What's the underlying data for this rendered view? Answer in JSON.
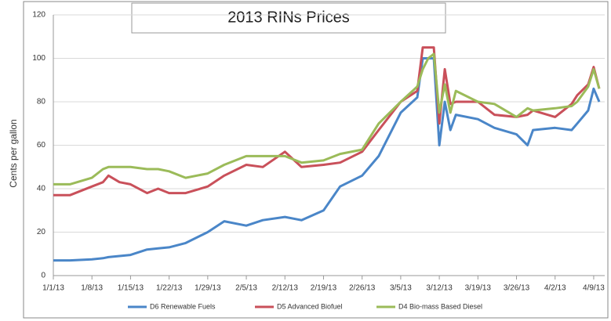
{
  "chart_data": {
    "type": "line",
    "title": "2013 RINs Prices",
    "y_label": "Cents per gallon",
    "x": [
      "1/1/13",
      "1/4/13",
      "1/8/13",
      "1/10/13",
      "1/11/13",
      "1/13/13",
      "1/15/13",
      "1/18/13",
      "1/20/13",
      "1/22/13",
      "1/25/13",
      "1/29/13",
      "2/1/13",
      "2/5/13",
      "2/8/13",
      "2/12/13",
      "2/15/13",
      "2/19/13",
      "2/22/13",
      "2/26/13",
      "3/1/13",
      "3/5/13",
      "3/8/13",
      "3/9/13",
      "3/10/13",
      "3/11/13",
      "3/12/13",
      "3/13/13",
      "3/14/13",
      "3/15/13",
      "3/19/13",
      "3/22/13",
      "3/26/13",
      "3/28/13",
      "3/29/13",
      "4/2/13",
      "4/5/13",
      "4/6/13",
      "4/8/13",
      "4/9/13",
      "4/10/13"
    ],
    "xlim": [
      "1/1/13",
      "4/11/13"
    ],
    "xticks": [
      "1/1/13",
      "1/8/13",
      "1/15/13",
      "1/22/13",
      "1/29/13",
      "2/5/13",
      "2/12/13",
      "2/19/13",
      "2/26/13",
      "3/5/13",
      "3/12/13",
      "3/19/13",
      "3/26/13",
      "4/2/13",
      "4/9/13"
    ],
    "ylim": [
      0,
      120
    ],
    "yticks": [
      0,
      20,
      40,
      60,
      80,
      100,
      120
    ],
    "grid": true,
    "series": [
      {
        "name": "D6 Renewable Fuels",
        "color": "#4a86c8",
        "values": [
          7,
          7,
          7.5,
          8,
          8.5,
          9,
          9.5,
          12,
          12.5,
          13,
          15,
          20,
          25,
          23,
          25.5,
          27,
          25.5,
          30,
          41,
          46,
          55,
          75,
          82,
          100,
          100,
          100,
          60,
          80,
          67,
          74,
          72,
          68,
          65,
          60,
          67,
          68,
          67,
          70,
          76,
          86,
          80
        ]
      },
      {
        "name": "D5 Advanced Biofuel",
        "color": "#c9505a",
        "values": [
          37,
          37,
          41,
          43,
          46,
          43,
          42,
          38,
          40,
          38,
          38,
          41,
          46,
          51,
          50,
          57,
          50,
          51,
          52,
          57,
          67,
          80,
          85,
          105,
          105,
          105,
          70,
          95,
          79,
          80,
          80,
          74,
          73,
          74,
          76,
          73,
          79,
          83,
          88,
          96,
          86
        ]
      },
      {
        "name": "D4 Bio-mass Based Diesel",
        "color": "#9bbb59",
        "values": [
          42,
          42,
          45,
          49,
          50,
          50,
          50,
          49,
          49,
          48,
          45,
          47,
          51,
          55,
          55,
          55,
          52,
          53,
          56,
          58,
          70,
          80,
          87,
          95,
          100,
          102,
          75,
          88,
          75,
          85,
          80,
          79,
          73,
          77,
          76,
          77,
          78,
          80,
          87,
          95,
          86
        ]
      }
    ]
  }
}
